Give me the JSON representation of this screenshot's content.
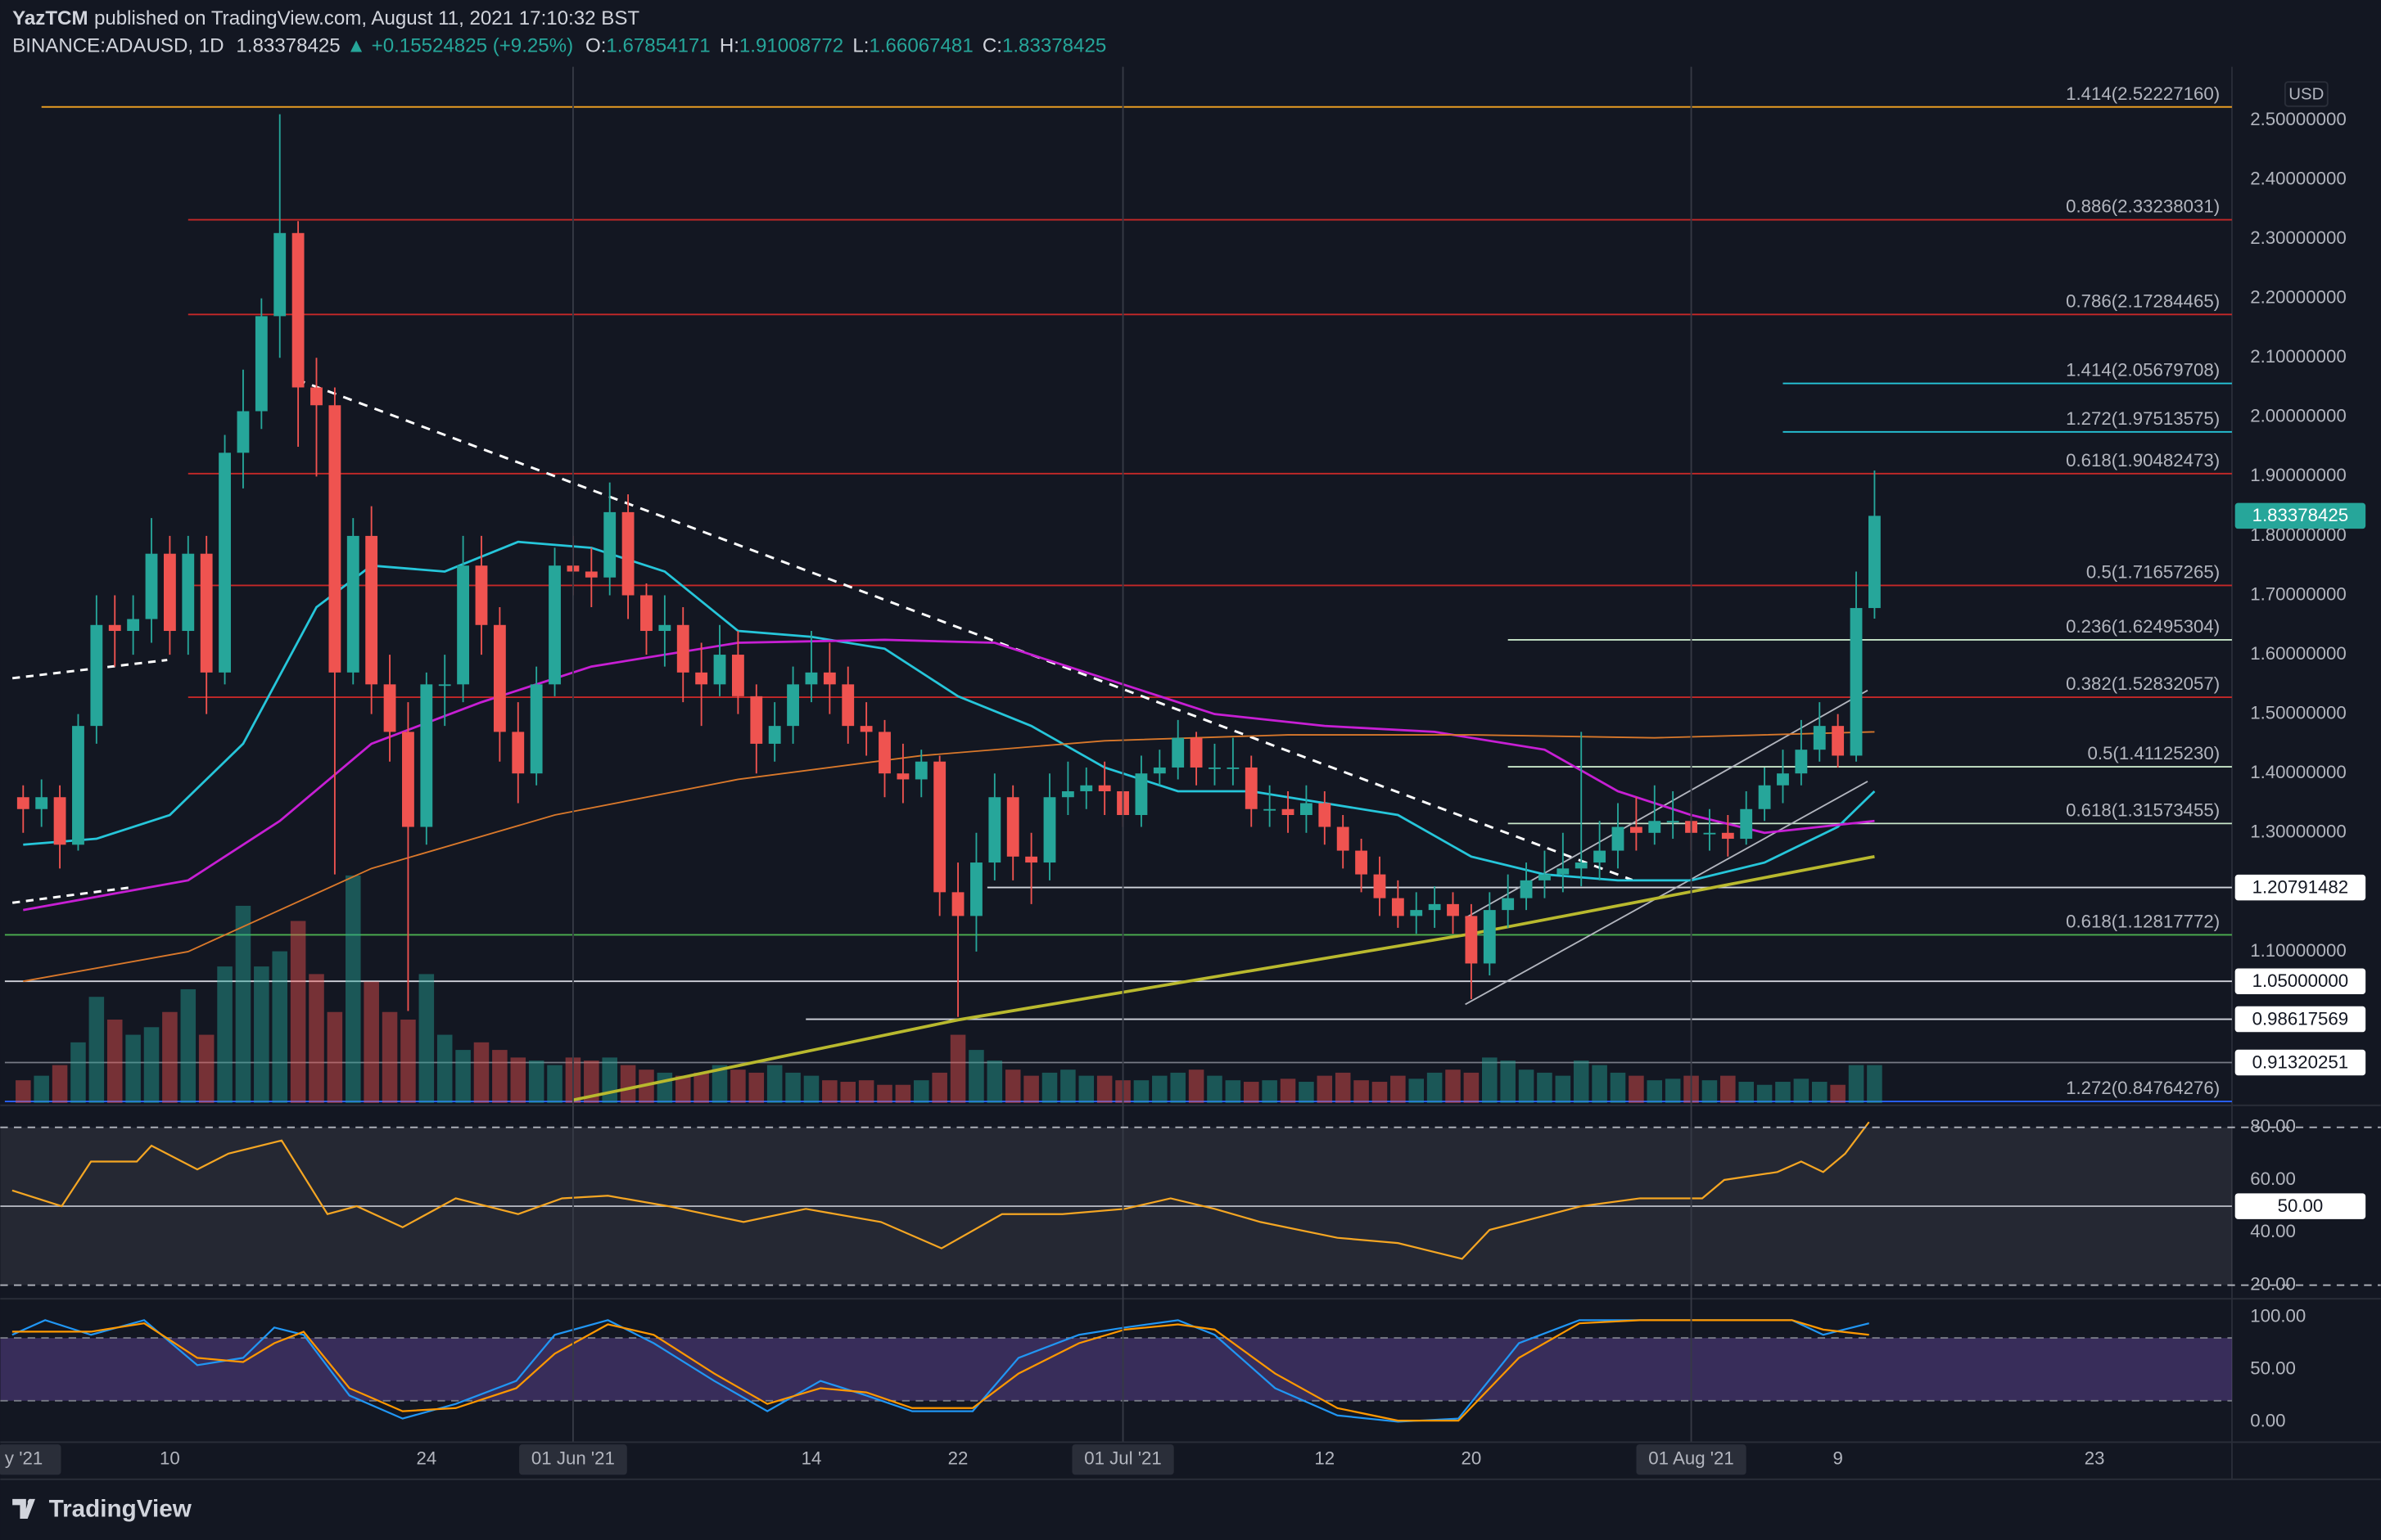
{
  "header": {
    "user": "YazTCM",
    "published": "published on TradingView.com, August 11, 2021 17:10:32 BST",
    "symbol": "BINANCE:ADAUSD, 1D",
    "change": "▲ +0.15524825 (+9.25%)",
    "ohlc_labels": [
      "O:",
      "H:",
      "L:",
      "C:"
    ]
  },
  "footer": "TradingView",
  "chart_data": {
    "type": "candlestick",
    "currency": "USD",
    "up_color": "#26a69a",
    "down_color": "#ef5350",
    "x": [
      1,
      2,
      3,
      4,
      5,
      6,
      7,
      8,
      9,
      10,
      11,
      12,
      13,
      14,
      15,
      16,
      17,
      18,
      19,
      20,
      21,
      22,
      23,
      24,
      25,
      26,
      27,
      28,
      29,
      30,
      31,
      32,
      33,
      34,
      35,
      36,
      37,
      38,
      39,
      40,
      41,
      42,
      43,
      44,
      45,
      46,
      47,
      48,
      49,
      50,
      51,
      52,
      53,
      54,
      55,
      56,
      57,
      58,
      59,
      60,
      61,
      62,
      63,
      64,
      65,
      66,
      67,
      68,
      69,
      70,
      71,
      72,
      73,
      74,
      75,
      76,
      77,
      78,
      79,
      80,
      81,
      82,
      83,
      84,
      85,
      86,
      87,
      88,
      89,
      90,
      91,
      92,
      93,
      94,
      95,
      96,
      97,
      98,
      99,
      100,
      101,
      102
    ],
    "open": [
      1.36,
      1.34,
      1.36,
      1.28,
      1.48,
      1.65,
      1.64,
      1.66,
      1.77,
      1.64,
      1.77,
      1.57,
      1.94,
      2.01,
      2.17,
      2.31,
      2.05,
      2.02,
      1.57,
      1.8,
      1.55,
      1.47,
      1.31,
      1.55,
      1.55,
      1.75,
      1.65,
      1.47,
      1.4,
      1.55,
      1.75,
      1.74,
      1.73,
      1.84,
      1.7,
      1.64,
      1.65,
      1.57,
      1.55,
      1.6,
      1.53,
      1.45,
      1.48,
      1.55,
      1.57,
      1.55,
      1.48,
      1.47,
      1.4,
      1.39,
      1.42,
      1.2,
      1.16,
      1.25,
      1.36,
      1.26,
      1.25,
      1.36,
      1.37,
      1.38,
      1.37,
      1.33,
      1.4,
      1.41,
      1.46,
      1.41,
      1.41,
      1.41,
      1.34,
      1.34,
      1.33,
      1.35,
      1.31,
      1.27,
      1.23,
      1.19,
      1.16,
      1.17,
      1.18,
      1.16,
      1.08,
      1.17,
      1.19,
      1.22,
      1.23,
      1.24,
      1.25,
      1.27,
      1.31,
      1.3,
      1.32,
      1.32,
      1.3,
      1.3,
      1.29,
      1.34,
      1.38,
      1.4,
      1.44,
      1.48,
      1.43,
      1.67854171
    ],
    "high": [
      1.38,
      1.39,
      1.38,
      1.5,
      1.7,
      1.7,
      1.7,
      1.83,
      1.8,
      1.8,
      1.8,
      1.97,
      2.08,
      2.2,
      2.51,
      2.33,
      2.1,
      2.05,
      1.83,
      1.85,
      1.6,
      1.52,
      1.57,
      1.6,
      1.8,
      1.8,
      1.68,
      1.52,
      1.58,
      1.78,
      1.8,
      1.78,
      1.89,
      1.87,
      1.72,
      1.7,
      1.68,
      1.62,
      1.65,
      1.64,
      1.55,
      1.52,
      1.58,
      1.64,
      1.62,
      1.58,
      1.52,
      1.49,
      1.45,
      1.44,
      1.43,
      1.25,
      1.3,
      1.4,
      1.38,
      1.3,
      1.4,
      1.42,
      1.41,
      1.42,
      1.4,
      1.43,
      1.44,
      1.49,
      1.47,
      1.45,
      1.46,
      1.43,
      1.38,
      1.37,
      1.38,
      1.37,
      1.33,
      1.29,
      1.26,
      1.22,
      1.2,
      1.21,
      1.2,
      1.18,
      1.2,
      1.23,
      1.25,
      1.27,
      1.3,
      1.47,
      1.32,
      1.35,
      1.36,
      1.38,
      1.37,
      1.35,
      1.34,
      1.33,
      1.37,
      1.41,
      1.44,
      1.49,
      1.52,
      1.5,
      1.74,
      1.91008772
    ],
    "low": [
      1.3,
      1.31,
      1.24,
      1.27,
      1.45,
      1.58,
      1.6,
      1.62,
      1.6,
      1.6,
      1.5,
      1.55,
      1.88,
      1.98,
      2.1,
      1.95,
      1.9,
      1.23,
      1.55,
      1.5,
      1.42,
      1.0,
      1.28,
      1.48,
      1.52,
      1.6,
      1.42,
      1.35,
      1.38,
      1.53,
      1.7,
      1.68,
      1.7,
      1.66,
      1.6,
      1.58,
      1.52,
      1.48,
      1.53,
      1.5,
      1.4,
      1.42,
      1.45,
      1.52,
      1.5,
      1.45,
      1.43,
      1.36,
      1.35,
      1.36,
      1.16,
      0.99,
      1.1,
      1.22,
      1.22,
      1.18,
      1.22,
      1.33,
      1.34,
      1.33,
      1.31,
      1.31,
      1.38,
      1.39,
      1.38,
      1.38,
      1.38,
      1.31,
      1.31,
      1.3,
      1.3,
      1.28,
      1.24,
      1.2,
      1.16,
      1.14,
      1.13,
      1.14,
      1.13,
      1.02,
      1.06,
      1.14,
      1.17,
      1.19,
      1.2,
      1.21,
      1.22,
      1.24,
      1.27,
      1.28,
      1.29,
      1.27,
      1.27,
      1.26,
      1.28,
      1.32,
      1.35,
      1.38,
      1.42,
      1.41,
      1.42,
      1.66067481
    ],
    "close": [
      1.34,
      1.36,
      1.28,
      1.48,
      1.65,
      1.64,
      1.66,
      1.77,
      1.64,
      1.77,
      1.57,
      1.94,
      2.01,
      2.17,
      2.31,
      2.05,
      2.02,
      1.57,
      1.8,
      1.55,
      1.47,
      1.31,
      1.55,
      1.55,
      1.75,
      1.65,
      1.47,
      1.4,
      1.55,
      1.75,
      1.74,
      1.73,
      1.84,
      1.7,
      1.64,
      1.65,
      1.57,
      1.55,
      1.6,
      1.53,
      1.45,
      1.48,
      1.55,
      1.57,
      1.55,
      1.48,
      1.47,
      1.4,
      1.39,
      1.42,
      1.2,
      1.16,
      1.25,
      1.36,
      1.26,
      1.25,
      1.36,
      1.37,
      1.38,
      1.37,
      1.33,
      1.4,
      1.41,
      1.46,
      1.41,
      1.41,
      1.41,
      1.34,
      1.34,
      1.33,
      1.35,
      1.31,
      1.27,
      1.23,
      1.19,
      1.16,
      1.17,
      1.18,
      1.16,
      1.08,
      1.17,
      1.19,
      1.22,
      1.23,
      1.24,
      1.25,
      1.27,
      1.31,
      1.3,
      1.32,
      1.32,
      1.3,
      1.3,
      1.29,
      1.34,
      1.38,
      1.4,
      1.44,
      1.48,
      1.43,
      1.67854171,
      1.83378425
    ],
    "volume": [
      15,
      18,
      25,
      40,
      70,
      55,
      45,
      50,
      60,
      75,
      45,
      90,
      130,
      90,
      100,
      120,
      85,
      60,
      150,
      80,
      60,
      55,
      85,
      45,
      35,
      40,
      35,
      30,
      28,
      25,
      30,
      28,
      30,
      25,
      22,
      20,
      18,
      20,
      25,
      22,
      20,
      25,
      20,
      18,
      15,
      14,
      15,
      12,
      12,
      15,
      20,
      45,
      35,
      28,
      22,
      18,
      20,
      22,
      18,
      18,
      15,
      15,
      18,
      20,
      22,
      18,
      15,
      14,
      15,
      16,
      14,
      18,
      20,
      15,
      14,
      18,
      16,
      20,
      22,
      20,
      30,
      28,
      22,
      20,
      18,
      28,
      25,
      20,
      18,
      15,
      16,
      18,
      15,
      18,
      14,
      12,
      14,
      16,
      14,
      12,
      25,
      25
    ],
    "xlim": [
      -0.25,
      121.5
    ],
    "xticks": [
      {
        "value": 0,
        "label": "y '21"
      },
      {
        "value": 9,
        "label": "10"
      },
      {
        "value": 23,
        "label": "24"
      },
      {
        "value": 31,
        "label": "01 Jun '21"
      },
      {
        "value": 44,
        "label": "14"
      },
      {
        "value": 52,
        "label": "22"
      },
      {
        "value": 61,
        "label": "01 Jul '21"
      },
      {
        "value": 72,
        "label": "12"
      },
      {
        "value": 80,
        "label": "20"
      },
      {
        "value": 92,
        "label": "01 Aug '21"
      },
      {
        "value": 100,
        "label": "9"
      },
      {
        "value": 114,
        "label": "23"
      }
    ],
    "ylim": [
      0.845,
      2.59
    ],
    "yticks": [
      {
        "value": 2.5,
        "label": "2.50000000"
      },
      {
        "value": 2.4,
        "label": "2.40000000"
      },
      {
        "value": 2.3,
        "label": "2.30000000"
      },
      {
        "value": 2.2,
        "label": "2.20000000"
      },
      {
        "value": 2.1,
        "label": "2.10000000"
      },
      {
        "value": 2.0,
        "label": "2.00000000"
      },
      {
        "value": 1.9,
        "label": "1.90000000"
      },
      {
        "value": 1.8,
        "label": "1.80000000"
      },
      {
        "value": 1.7,
        "label": "1.70000000"
      },
      {
        "value": 1.6,
        "label": "1.60000000"
      },
      {
        "value": 1.5,
        "label": "1.50000000"
      },
      {
        "value": 1.4,
        "label": "1.40000000"
      },
      {
        "value": 1.3,
        "label": "1.30000000"
      },
      {
        "value": 1.1,
        "label": "1.10000000"
      }
    ],
    "moving_averages": [
      {
        "color": "#26c6da",
        "width": 1.5,
        "x": [
          1,
          5,
          9,
          13,
          17,
          20,
          24,
          28,
          32,
          36,
          40,
          44,
          48,
          52,
          56,
          60,
          64,
          68,
          72,
          76,
          80,
          84,
          88,
          92,
          96,
          100,
          102
        ],
        "values": [
          1.28,
          1.29,
          1.33,
          1.45,
          1.68,
          1.75,
          1.74,
          1.79,
          1.78,
          1.74,
          1.64,
          1.63,
          1.61,
          1.53,
          1.48,
          1.41,
          1.37,
          1.37,
          1.35,
          1.33,
          1.26,
          1.23,
          1.22,
          1.22,
          1.25,
          1.31,
          1.37
        ]
      },
      {
        "color": "#c71fd4",
        "width": 1.5,
        "x": [
          1,
          10,
          15,
          20,
          26,
          32,
          40,
          48,
          54,
          60,
          66,
          72,
          78,
          84,
          88,
          92,
          96,
          102
        ],
        "values": [
          1.17,
          1.22,
          1.32,
          1.45,
          1.52,
          1.58,
          1.62,
          1.625,
          1.62,
          1.56,
          1.5,
          1.48,
          1.47,
          1.44,
          1.37,
          1.33,
          1.3,
          1.32
        ]
      },
      {
        "color": "#d9782b",
        "width": 1,
        "x": [
          1,
          10,
          20,
          30,
          40,
          50,
          60,
          70,
          80,
          90,
          102
        ],
        "values": [
          1.05,
          1.1,
          1.24,
          1.33,
          1.39,
          1.43,
          1.455,
          1.465,
          1.465,
          1.46,
          1.47
        ]
      },
      {
        "color": "#b9b92e",
        "width": 2,
        "x": [
          31,
          52,
          80,
          102
        ],
        "values": [
          0.85,
          0.985,
          1.13,
          1.26
        ]
      }
    ],
    "levels": [
      {
        "label": "1.414(2.52227160)",
        "value": 2.5222716,
        "color": "#f5a623",
        "from": 2
      },
      {
        "label": "0.886(2.33238031)",
        "value": 2.33238031,
        "color": "#c62828",
        "from": 10
      },
      {
        "label": "0.786(2.17284465)",
        "value": 2.17284465,
        "color": "#c62828",
        "from": 10
      },
      {
        "label": "1.414(2.05679708)",
        "value": 2.05679708,
        "color": "#26c6da",
        "from": 97
      },
      {
        "label": "1.272(1.97513575)",
        "value": 1.97513575,
        "color": "#26c6da",
        "from": 97
      },
      {
        "label": "0.618(1.90482473)",
        "value": 1.90482473,
        "color": "#c62828",
        "from": 10
      },
      {
        "label": "0.5(1.71657265)",
        "value": 1.71657265,
        "color": "#c62828",
        "from": 10
      },
      {
        "label": "0.236(1.62495304)",
        "value": 1.62495304,
        "color": "#c8e6c9",
        "from": 82
      },
      {
        "label": "0.382(1.52832057)",
        "value": 1.52832057,
        "color": "#c62828",
        "from": 10
      },
      {
        "label": "0.5(1.41125230)",
        "value": 1.4112523,
        "color": "#c8e6c9",
        "from": 82
      },
      {
        "label": "0.618(1.31573455)",
        "value": 1.31573455,
        "color": "#c8e6c9",
        "from": 82
      },
      {
        "label": "0.618(1.12817772)",
        "value": 1.12817772,
        "color": "#4caf50",
        "from": 0
      },
      {
        "label": "1.272(0.84764276)",
        "value": 0.84764276,
        "color": "#2962ff",
        "from": 0
      }
    ],
    "price_lines": [
      {
        "value": 1.20791482,
        "from": 53.6
      },
      {
        "value": 1.05,
        "label": "1.05000000",
        "from": 0
      },
      {
        "value": 0.98617569,
        "from": 43.7
      },
      {
        "value": 0.91320251,
        "from": 0
      }
    ],
    "rsi": {
      "color": "#f5a623",
      "ylim": [
        15.4,
        87.5
      ],
      "yticks": [
        {
          "value": 80,
          "label": "80.00"
        },
        {
          "value": 60,
          "label": "60.00"
        },
        {
          "value": 40,
          "label": "40.00"
        },
        {
          "value": 20,
          "label": "20.00"
        }
      ],
      "bands": [
        20,
        80
      ],
      "midline": {
        "value": 50,
        "label": "50.00"
      },
      "x": [
        0.4,
        3.1,
        4.7,
        7.2,
        8.0,
        10.5,
        12.2,
        15.1,
        17.6,
        19.2,
        21.7,
        24.6,
        28.0,
        30.4,
        32.9,
        36.2,
        40.3,
        43.7,
        47.8,
        51.1,
        54.4,
        57.7,
        61.1,
        63.6,
        66.0,
        68.5,
        72.7,
        76.0,
        79.5,
        81.0,
        86.0,
        89.2,
        92.6,
        93.8,
        96.7,
        98.0,
        99.2,
        100.4,
        101.7
      ],
      "values": [
        56,
        50,
        67,
        67,
        73,
        64,
        70,
        75,
        47,
        50,
        42,
        53,
        47,
        53,
        54,
        50,
        44,
        49,
        44,
        34,
        47,
        47,
        49,
        53,
        49,
        44,
        38,
        36,
        30,
        41,
        50,
        53,
        53,
        60,
        63,
        67,
        63,
        70,
        82
      ]
    },
    "stoch_rsi": {
      "ylim": [
        -18.8,
        116
      ],
      "yticks": [
        {
          "value": 100,
          "label": "100.00"
        },
        {
          "value": 50,
          "label": "50.00"
        },
        {
          "value": 0,
          "label": "0.00"
        }
      ],
      "bands": [
        20,
        80
      ],
      "x": [
        0.4,
        2.2,
        4.7,
        7.6,
        10.5,
        13.0,
        14.7,
        16.3,
        18.8,
        21.7,
        24.6,
        27.9,
        30.0,
        32.9,
        35.4,
        38.7,
        41.6,
        44.5,
        47.0,
        49.5,
        52.8,
        55.3,
        58.6,
        61.1,
        64.0,
        66.0,
        69.3,
        72.7,
        76.0,
        79.3,
        82.6,
        85.9,
        89.2,
        94.2,
        97.5,
        99.2,
        101.7
      ],
      "series": [
        {
          "color": "#2196f3",
          "values": [
            83,
            97,
            83,
            97,
            54,
            61,
            90,
            83,
            25,
            3,
            17,
            39,
            83,
            97,
            75,
            39,
            10,
            39,
            25,
            10,
            10,
            61,
            83,
            90,
            97,
            83,
            32,
            6,
            0,
            3,
            75,
            97,
            97,
            97,
            97,
            83,
            94
          ]
        },
        {
          "color": "#ff9800",
          "values": [
            86,
            86,
            86,
            94,
            61,
            57,
            75,
            86,
            32,
            10,
            13,
            32,
            65,
            93,
            83,
            46,
            17,
            32,
            28,
            13,
            13,
            46,
            75,
            88,
            93,
            88,
            46,
            13,
            1,
            1,
            61,
            94,
            97,
            97,
            97,
            88,
            83
          ]
        }
      ]
    }
  }
}
